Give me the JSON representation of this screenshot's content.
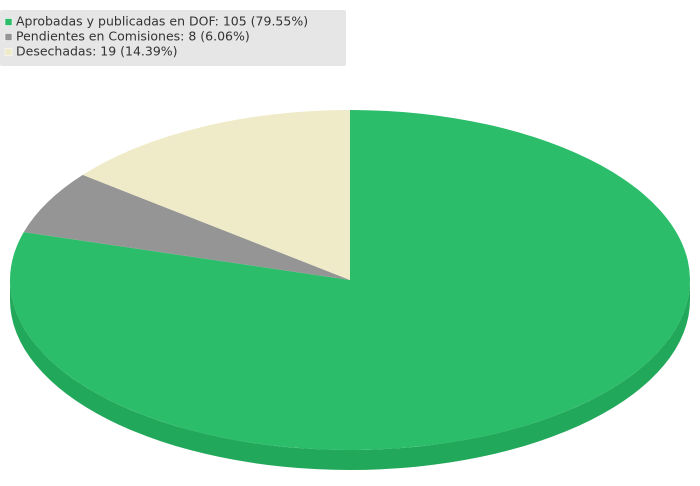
{
  "chart_data": {
    "type": "pie3d",
    "categories": [
      "Aprobadas y publicadas en DOF: 105  (79.55%)",
      "Pendientes en Comisiones: 8  (6.06%)",
      "Desechadas: 19  (14.39%)"
    ],
    "values": [
      105,
      8,
      19
    ],
    "colors": [
      "#2bbd6a",
      "#959595",
      "#efebc8"
    ],
    "side_colors": [
      "#22a85a",
      "#7a7a7a",
      "#cfcaa6"
    ],
    "legend": "top-left"
  }
}
